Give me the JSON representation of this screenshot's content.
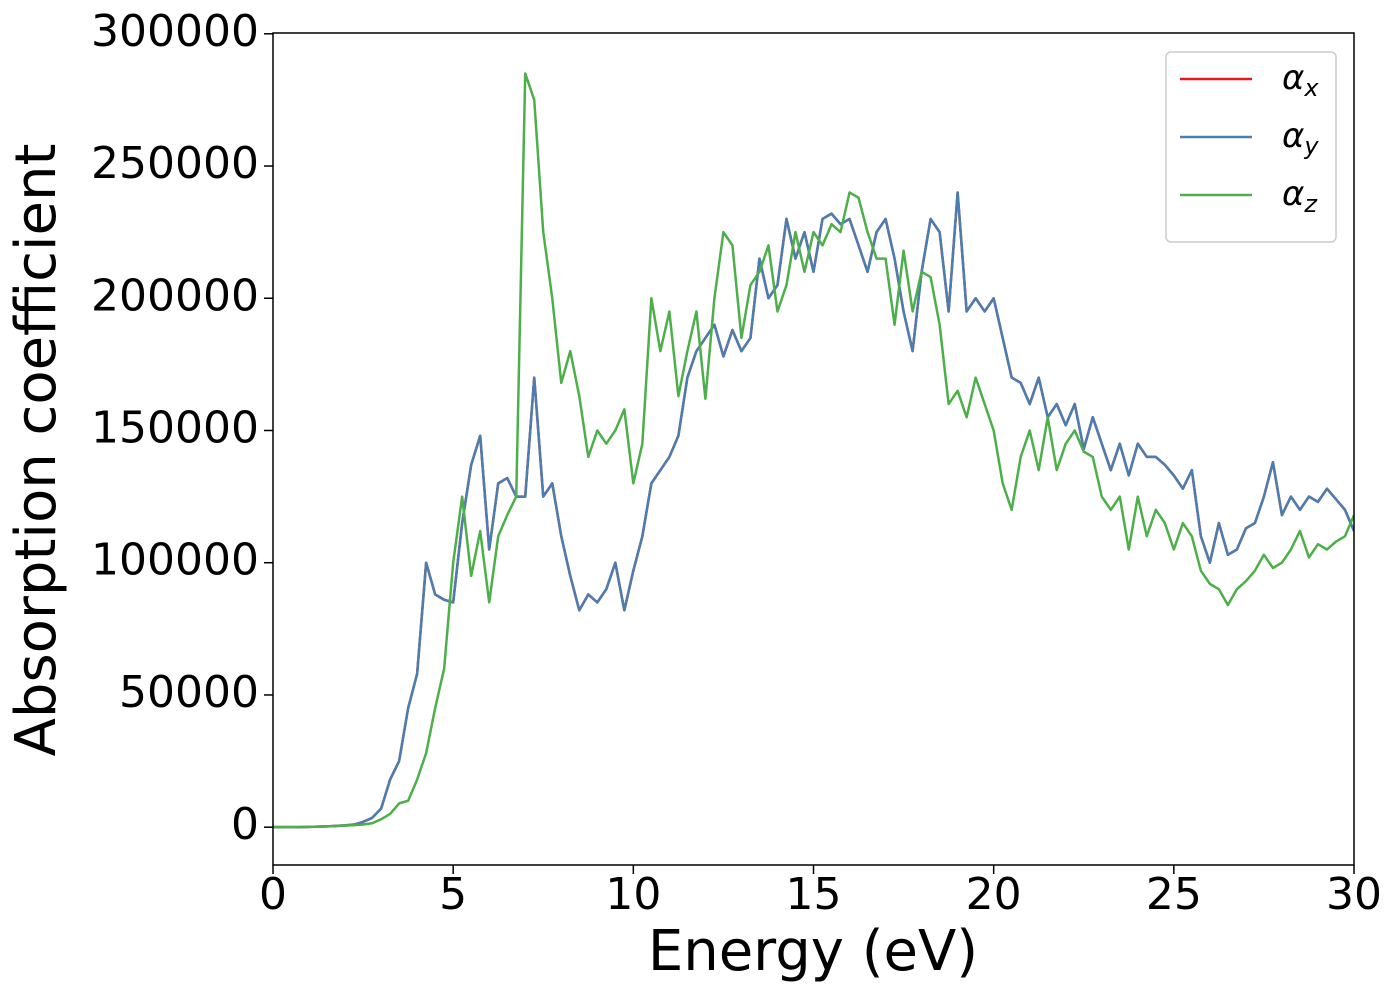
{
  "chart_data": {
    "type": "line",
    "xlabel": "Energy (eV)",
    "ylabel": "Absorption coefficient",
    "x": [
      0,
      0.25,
      0.5,
      0.75,
      1,
      1.25,
      1.5,
      1.75,
      2,
      2.25,
      2.5,
      2.75,
      3,
      3.25,
      3.5,
      3.75,
      4,
      4.25,
      4.5,
      4.75,
      5,
      5.25,
      5.5,
      5.75,
      6,
      6.25,
      6.5,
      6.75,
      7,
      7.25,
      7.5,
      7.75,
      8,
      8.25,
      8.5,
      8.75,
      9,
      9.25,
      9.5,
      9.75,
      10,
      10.25,
      10.5,
      10.75,
      11,
      11.25,
      11.5,
      11.75,
      12,
      12.25,
      12.5,
      12.75,
      13,
      13.25,
      13.5,
      13.75,
      14,
      14.25,
      14.5,
      14.75,
      15,
      15.25,
      15.5,
      15.75,
      16,
      16.25,
      16.5,
      16.75,
      17,
      17.25,
      17.5,
      17.75,
      18,
      18.25,
      18.5,
      18.75,
      19,
      19.25,
      19.5,
      19.75,
      20,
      20.25,
      20.5,
      20.75,
      21,
      21.25,
      21.5,
      21.75,
      22,
      22.25,
      22.5,
      22.75,
      23,
      23.25,
      23.5,
      23.75,
      24,
      24.25,
      24.5,
      24.75,
      25,
      25.25,
      25.5,
      25.75,
      26,
      26.25,
      26.5,
      26.75,
      27,
      27.25,
      27.5,
      27.75,
      28,
      28.25,
      28.5,
      28.75,
      29,
      29.25,
      29.5,
      29.75,
      30
    ],
    "series": [
      {
        "name": "αx",
        "color": "#e41a1c",
        "values": [
          0,
          0,
          0,
          0,
          100,
          200,
          300,
          500,
          700,
          1000,
          2000,
          3500,
          7000,
          18000,
          25000,
          45000,
          58000,
          100000,
          88000,
          86000,
          85000,
          115000,
          137000,
          148000,
          105000,
          130000,
          132000,
          125000,
          125000,
          170000,
          125000,
          130000,
          110000,
          95000,
          82000,
          88000,
          85000,
          90000,
          100000,
          82000,
          97000,
          110000,
          130000,
          135000,
          140000,
          148000,
          170000,
          180000,
          185000,
          190000,
          178000,
          188000,
          180000,
          185000,
          215000,
          200000,
          205000,
          230000,
          215000,
          225000,
          210000,
          230000,
          232000,
          228000,
          230000,
          220000,
          210000,
          225000,
          230000,
          215000,
          195000,
          180000,
          210000,
          230000,
          225000,
          195000,
          240000,
          195000,
          200000,
          195000,
          200000,
          185000,
          170000,
          168000,
          160000,
          170000,
          155000,
          160000,
          152000,
          160000,
          143000,
          155000,
          145000,
          135000,
          145000,
          133000,
          145000,
          140000,
          140000,
          137000,
          133000,
          128000,
          135000,
          110000,
          100000,
          115000,
          103000,
          105000,
          113000,
          115000,
          125000,
          138000,
          118000,
          125000,
          120000,
          125000,
          123000,
          128000,
          124000,
          120000,
          112000
        ]
      },
      {
        "name": "αy",
        "color": "#4a7eb0",
        "values": [
          0,
          0,
          0,
          0,
          100,
          200,
          300,
          500,
          700,
          1000,
          2000,
          3500,
          7000,
          18000,
          25000,
          45000,
          58000,
          100000,
          88000,
          86000,
          85000,
          115000,
          137000,
          148000,
          105000,
          130000,
          132000,
          125000,
          125000,
          170000,
          125000,
          130000,
          110000,
          95000,
          82000,
          88000,
          85000,
          90000,
          100000,
          82000,
          97000,
          110000,
          130000,
          135000,
          140000,
          148000,
          170000,
          180000,
          185000,
          190000,
          178000,
          188000,
          180000,
          185000,
          215000,
          200000,
          205000,
          230000,
          215000,
          225000,
          210000,
          230000,
          232000,
          228000,
          230000,
          220000,
          210000,
          225000,
          230000,
          215000,
          195000,
          180000,
          210000,
          230000,
          225000,
          195000,
          240000,
          195000,
          200000,
          195000,
          200000,
          185000,
          170000,
          168000,
          160000,
          170000,
          155000,
          160000,
          152000,
          160000,
          143000,
          155000,
          145000,
          135000,
          145000,
          133000,
          145000,
          140000,
          140000,
          137000,
          133000,
          128000,
          135000,
          110000,
          100000,
          115000,
          103000,
          105000,
          113000,
          115000,
          125000,
          138000,
          118000,
          125000,
          120000,
          125000,
          123000,
          128000,
          124000,
          120000,
          112000
        ]
      },
      {
        "name": "αz",
        "color": "#4daf4a",
        "values": [
          0,
          0,
          0,
          0,
          100,
          200,
          300,
          400,
          600,
          800,
          1000,
          1500,
          3000,
          5000,
          9000,
          10000,
          18000,
          28000,
          45000,
          60000,
          100000,
          125000,
          95000,
          112000,
          85000,
          110000,
          118000,
          125000,
          285000,
          275000,
          225000,
          200000,
          168000,
          180000,
          163000,
          140000,
          150000,
          145000,
          150000,
          158000,
          130000,
          145000,
          200000,
          180000,
          195000,
          163000,
          180000,
          195000,
          162000,
          200000,
          225000,
          220000,
          185000,
          205000,
          210000,
          220000,
          195000,
          205000,
          225000,
          210000,
          225000,
          220000,
          228000,
          225000,
          240000,
          238000,
          225000,
          215000,
          215000,
          190000,
          218000,
          195000,
          210000,
          208000,
          190000,
          160000,
          165000,
          155000,
          170000,
          160000,
          150000,
          130000,
          120000,
          140000,
          150000,
          135000,
          155000,
          135000,
          145000,
          150000,
          142000,
          140000,
          125000,
          120000,
          125000,
          105000,
          125000,
          110000,
          120000,
          115000,
          105000,
          115000,
          110000,
          97000,
          92000,
          90000,
          84000,
          90000,
          93000,
          97000,
          103000,
          98000,
          100000,
          105000,
          112000,
          102000,
          107000,
          105000,
          108000,
          110000,
          118000
        ]
      }
    ],
    "xlim": [
      0,
      30
    ],
    "xticks": [
      0,
      5,
      10,
      15,
      20,
      25,
      30
    ],
    "ylim": [
      -14300,
      300300
    ],
    "yticks": [
      0,
      50000,
      100000,
      150000,
      200000,
      250000,
      300000
    ],
    "grid": false,
    "legend": "upper right"
  }
}
